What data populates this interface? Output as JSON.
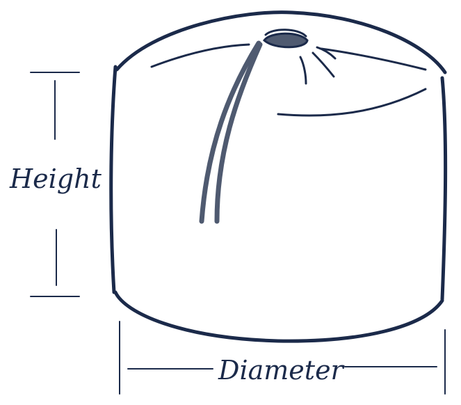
{
  "labels": {
    "height": "Height",
    "diameter": "Diameter"
  },
  "colors": {
    "ink": "#1b2a4a",
    "tie": "#4f5a70",
    "background": "#ffffff"
  },
  "icons": {
    "object": "round-pouf-icon",
    "tie": "drawstring-icon"
  }
}
